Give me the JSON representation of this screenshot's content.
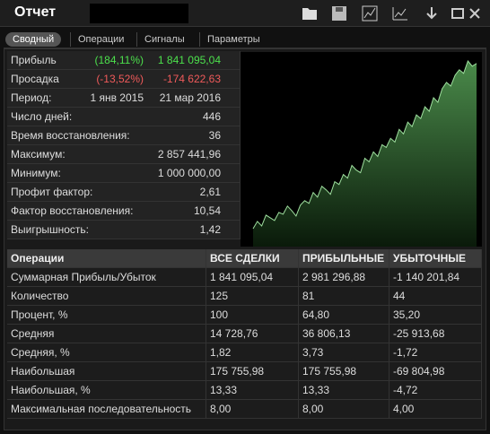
{
  "header": {
    "title": "Отчет"
  },
  "tabs": [
    "Сводный",
    "Операции",
    "Сигналы",
    "Параметры"
  ],
  "summary": {
    "rows": [
      [
        "Прибыль",
        "(184,11%)",
        "1 841 095,04"
      ],
      [
        "Просадка",
        "(-13,52%)",
        "-174 622,63"
      ],
      [
        "Период:",
        "1 янв 2015",
        "21 мар 2016"
      ],
      [
        "Число дней:",
        "446"
      ],
      [
        "Время восстановления:",
        "36"
      ],
      [
        "Максимум:",
        "2 857 441,96"
      ],
      [
        "Минимум:",
        "1 000 000,00"
      ],
      [
        "Профит фактор:",
        "2,61"
      ],
      [
        "Фактор восстановления:",
        "10,54"
      ],
      [
        "Выигрышность:",
        "1,42"
      ]
    ]
  },
  "equity_curve": {
    "values": [
      1000000,
      1080000,
      1030000,
      1150000,
      1120000,
      1090000,
      1180000,
      1160000,
      1250000,
      1200000,
      1140000,
      1260000,
      1310000,
      1280000,
      1400000,
      1350000,
      1470000,
      1430000,
      1380000,
      1520000,
      1490000,
      1600000,
      1560000,
      1700000,
      1650000,
      1620000,
      1780000,
      1740000,
      1850000,
      1800000,
      1930000,
      1900000,
      2000000,
      1960000,
      2100000,
      2050000,
      2180000,
      2130000,
      2260000,
      2220000,
      2350000,
      2300000,
      2450000,
      2400000,
      2550000,
      2620000,
      2580000,
      2700000,
      2760000,
      2720000,
      2857442,
      2800000,
      2830000
    ]
  },
  "table": {
    "columns": [
      "Операции",
      "ВСЕ СДЕЛКИ",
      "ПРИБЫЛЬНЫЕ",
      "УБЫТОЧНЫЕ"
    ],
    "rows": [
      [
        "Суммарная Прибыль/Убыток",
        "1 841 095,04",
        "2 981 296,88",
        "-1 140 201,84"
      ],
      [
        "Количество",
        "125",
        "81",
        "44"
      ],
      [
        "Процент, %",
        "100",
        "64,80",
        "35,20"
      ],
      [
        "Средняя",
        "14 728,76",
        "36 806,13",
        "-25 913,68"
      ],
      [
        "Средняя, %",
        "1,82",
        "3,73",
        "-1,72"
      ],
      [
        "Наибольшая",
        "175 755,98",
        "175 755,98",
        "-69 804,98"
      ],
      [
        "Наибольшая, %",
        "13,33",
        "13,33",
        "-4,72"
      ],
      [
        "Максимальная последовательность",
        "8,00",
        "8,00",
        "4,00"
      ]
    ]
  }
}
